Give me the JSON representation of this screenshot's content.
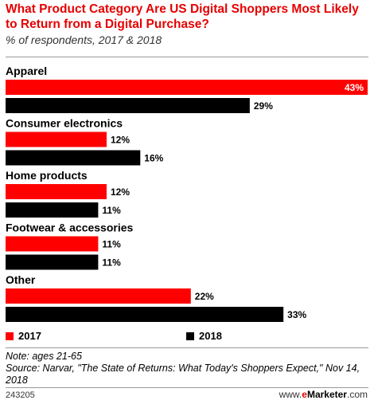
{
  "title": "What Product Category Are US Digital Shoppers Most Likely to Return from a Digital Purchase?",
  "subtitle": "% of respondents, 2017 & 2018",
  "note": "Note: ages 21-65",
  "source": "Source: Narvar, \"The State of Returns: What Today's Shoppers Expect,\" Nov 14, 2018",
  "chart_id": "243205",
  "brand": {
    "prefix": "www.",
    "e": "e",
    "name": "Marketer",
    "suffix": ".com"
  },
  "colors": {
    "2017": "#ff0000",
    "2018": "#000000"
  },
  "chart_data": {
    "type": "bar",
    "orientation": "horizontal",
    "categories": [
      "Apparel",
      "Consumer electronics",
      "Home products",
      "Footwear & accessories",
      "Other"
    ],
    "series": [
      {
        "name": "2017",
        "values": [
          43,
          12,
          12,
          11,
          22
        ]
      },
      {
        "name": "2018",
        "values": [
          29,
          16,
          11,
          11,
          33
        ]
      }
    ],
    "value_suffix": "%",
    "xlim": [
      0,
      43
    ],
    "legend": "bottom-left",
    "grid": false
  }
}
